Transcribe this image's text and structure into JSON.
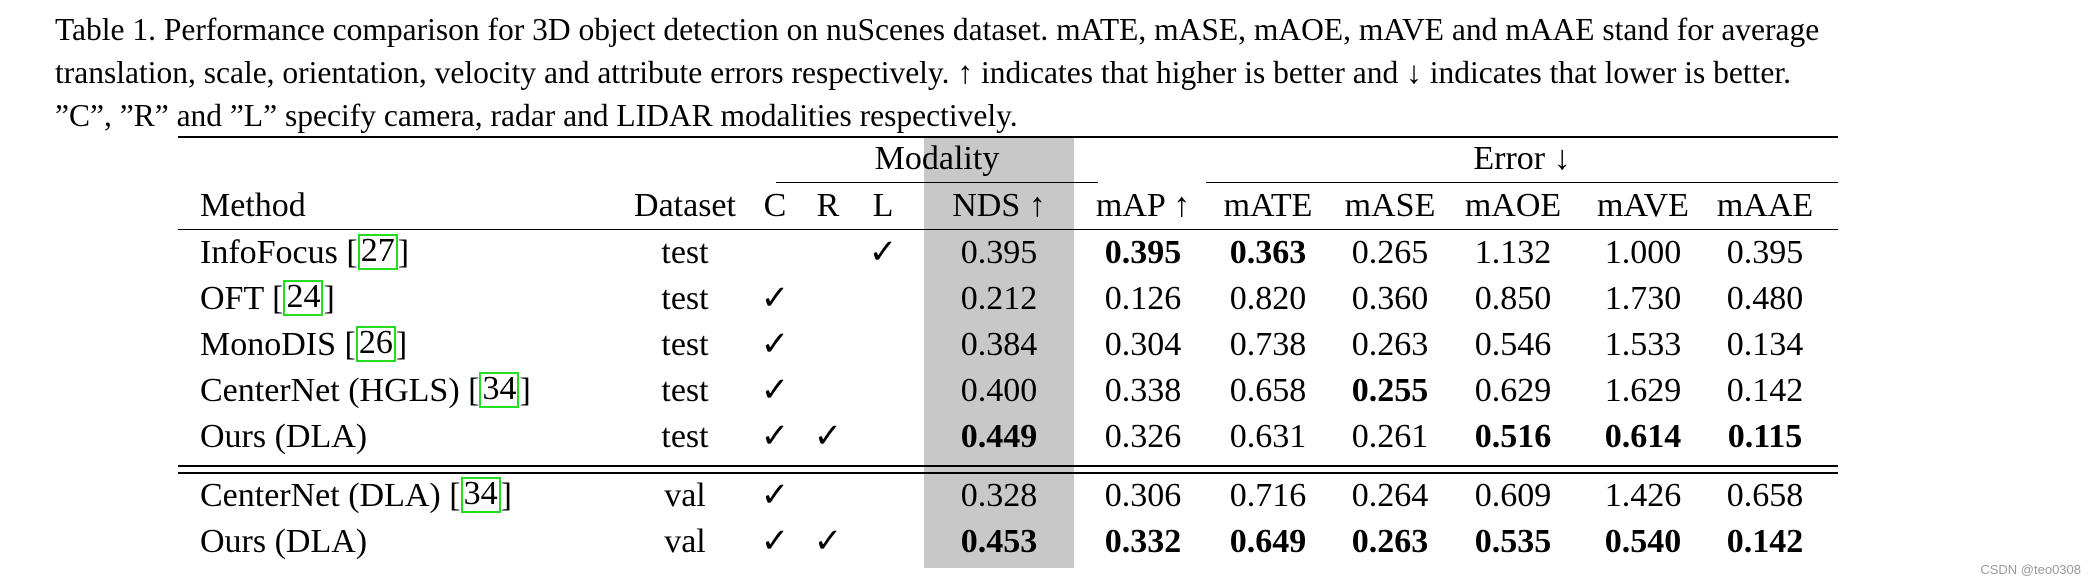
{
  "caption": {
    "line1": "Table 1. Performance comparison for 3D object detection on nuScenes dataset. mATE, mASE, mAOE, mAVE and mAAE stand for average",
    "line2": "translation, scale, orientation, velocity and attribute errors respectively. ↑ indicates that higher is better and ↓ indicates that lower is better.",
    "line3": "”C”, ”R” and ”L” specify camera, radar and LIDAR modalities respectively."
  },
  "header": {
    "modality_group": "Modality",
    "error_group": "Error ↓",
    "method": "Method",
    "dataset": "Dataset",
    "c": "C",
    "r": "R",
    "l": "L",
    "nds": "NDS ↑",
    "map": "mAP ↑",
    "mate": "mATE",
    "mase": "mASE",
    "maoe": "mAOE",
    "mave": "mAVE",
    "maae": "mAAE"
  },
  "rows": [
    {
      "method": "InfoFocus [",
      "ref": "27",
      "close": "]",
      "dataset": "test",
      "c": "",
      "r": "",
      "l": "✓",
      "nds": "0.395",
      "map": "0.395",
      "mate": "0.363",
      "mase": "0.265",
      "maoe": "1.132",
      "mave": "1.000",
      "maae": "0.395"
    },
    {
      "method": "OFT [",
      "ref": "24",
      "close": "]",
      "dataset": "test",
      "c": "✓",
      "r": "",
      "l": "",
      "nds": "0.212",
      "map": "0.126",
      "mate": "0.820",
      "mase": "0.360",
      "maoe": "0.850",
      "mave": "1.730",
      "maae": "0.480"
    },
    {
      "method": "MonoDIS [",
      "ref": "26",
      "close": "]",
      "dataset": "test",
      "c": "✓",
      "r": "",
      "l": "",
      "nds": "0.384",
      "map": "0.304",
      "mate": "0.738",
      "mase": "0.263",
      "maoe": "0.546",
      "mave": "1.533",
      "maae": "0.134"
    },
    {
      "method": "CenterNet (HGLS) [",
      "ref": "34",
      "close": "]",
      "dataset": "test",
      "c": "✓",
      "r": "",
      "l": "",
      "nds": "0.400",
      "map": "0.338",
      "mate": "0.658",
      "mase": "0.255",
      "maoe": "0.629",
      "mave": "1.629",
      "maae": "0.142"
    },
    {
      "method": "Ours (DLA)",
      "ref": "",
      "close": "",
      "dataset": "test",
      "c": "✓",
      "r": "✓",
      "l": "",
      "nds": "0.449",
      "map": "0.326",
      "mate": "0.631",
      "mase": "0.261",
      "maoe": "0.516",
      "mave": "0.614",
      "maae": "0.115"
    },
    {
      "method": "CenterNet (DLA) [",
      "ref": "34",
      "close": "]",
      "dataset": "val",
      "c": "✓",
      "r": "",
      "l": "",
      "nds": "0.328",
      "map": "0.306",
      "mate": "0.716",
      "mase": "0.264",
      "maoe": "0.609",
      "mave": "1.426",
      "maae": "0.658"
    },
    {
      "method": "Ours (DLA)",
      "ref": "",
      "close": "",
      "dataset": "val",
      "c": "✓",
      "r": "✓",
      "l": "",
      "nds": "0.453",
      "map": "0.332",
      "mate": "0.649",
      "mase": "0.263",
      "maoe": "0.535",
      "mave": "0.540",
      "maae": "0.142"
    }
  ],
  "bold_cells": [
    "0.map",
    "0.mate",
    "3.mase",
    "4.nds",
    "4.maoe",
    "4.mave",
    "4.maae",
    "6.nds",
    "6.map",
    "6.mate",
    "6.mase",
    "6.maoe",
    "6.mave",
    "6.maae"
  ],
  "colors": {
    "nds_column_shade": "#c8c8c8",
    "citation_box": "#22dd22"
  },
  "watermark": "CSDN @teo0308"
}
